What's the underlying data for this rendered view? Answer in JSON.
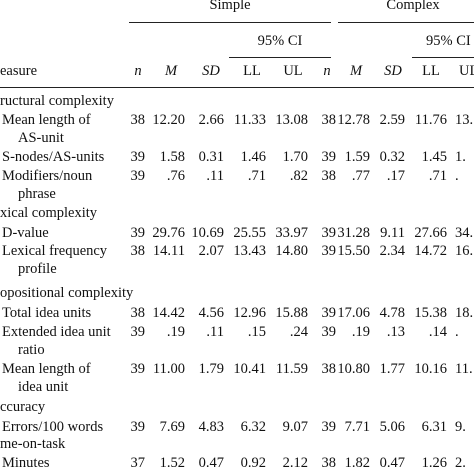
{
  "header": {
    "group_simple": "Simple",
    "group_complex": "Complex",
    "ci_simple": "95% CI",
    "ci_complex": "95% CI",
    "columns": {
      "measure": "easure",
      "n1": "n",
      "m1": "M",
      "sd1": "SD",
      "ll1": "LL",
      "ul1": "UL",
      "n2": "n",
      "m2": "M",
      "sd2": "SD",
      "ll2": "LL",
      "ul2": "UL"
    }
  },
  "sections": {
    "structural": "ructural complexity",
    "lexical": "xical complexity",
    "propositional": "opositional complexity",
    "accuracy": "ccuracy",
    "time": "me-on-task"
  },
  "rows": [
    {
      "label1": "Mean length of",
      "label2": "AS-unit",
      "n1": "38",
      "m1": "12.20",
      "sd1": "2.66",
      "ll1": "11.33",
      "ul1": "13.08",
      "n2": "38",
      "m2": "12.78",
      "sd2": "2.59",
      "ll2": "11.76",
      "ul2": "13."
    },
    {
      "label1": "S-nodes/AS-units",
      "label2": "",
      "n1": "39",
      "m1": "1.58",
      "sd1": "0.31",
      "ll1": "1.46",
      "ul1": "1.70",
      "n2": "39",
      "m2": "1.59",
      "sd2": "0.32",
      "ll2": "1.45",
      "ul2": "1."
    },
    {
      "label1": "Modifiers/noun",
      "label2": "phrase",
      "n1": "39",
      "m1": ".76",
      "sd1": ".11",
      "ll1": ".71",
      "ul1": ".82",
      "n2": "38",
      "m2": ".77",
      "sd2": ".17",
      "ll2": ".71",
      "ul2": "."
    },
    {
      "label1": "D-value",
      "label2": "",
      "n1": "39",
      "m1": "29.76",
      "sd1": "10.69",
      "ll1": "25.55",
      "ul1": "33.97",
      "n2": "39",
      "m2": "31.28",
      "sd2": "9.11",
      "ll2": "27.66",
      "ul2": "34."
    },
    {
      "label1": "Lexical frequency",
      "label2": "profile",
      "n1": "38",
      "m1": "14.11",
      "sd1": "2.07",
      "ll1": "13.43",
      "ul1": "14.80",
      "n2": "39",
      "m2": "15.50",
      "sd2": "2.34",
      "ll2": "14.72",
      "ul2": "16."
    },
    {
      "label1": "Total idea units",
      "label2": "",
      "n1": "38",
      "m1": "14.42",
      "sd1": "4.56",
      "ll1": "12.96",
      "ul1": "15.88",
      "n2": "39",
      "m2": "17.06",
      "sd2": "4.78",
      "ll2": "15.38",
      "ul2": "18."
    },
    {
      "label1": "Extended idea unit",
      "label2": "ratio",
      "n1": "39",
      "m1": ".19",
      "sd1": ".11",
      "ll1": ".15",
      "ul1": ".24",
      "n2": "39",
      "m2": ".19",
      "sd2": ".13",
      "ll2": ".14",
      "ul2": "."
    },
    {
      "label1": "Mean length of",
      "label2": "idea unit",
      "n1": "39",
      "m1": "11.00",
      "sd1": "1.79",
      "ll1": "10.41",
      "ul1": "11.59",
      "n2": "38",
      "m2": "10.80",
      "sd2": "1.77",
      "ll2": "10.16",
      "ul2": "11."
    },
    {
      "label1": "Errors/100 words",
      "label2": "",
      "n1": "39",
      "m1": "7.69",
      "sd1": "4.83",
      "ll1": "6.32",
      "ul1": "9.07",
      "n2": "39",
      "m2": "7.71",
      "sd2": "5.06",
      "ll2": "6.31",
      "ul2": "9."
    },
    {
      "label1": "Minutes",
      "label2": "",
      "n1": "37",
      "m1": "1.52",
      "sd1": "0.47",
      "ll1": "0.92",
      "ul1": "2.12",
      "n2": "38",
      "m2": "1.82",
      "sd2": "0.47",
      "ll2": "1.26",
      "ul2": "2."
    }
  ]
}
